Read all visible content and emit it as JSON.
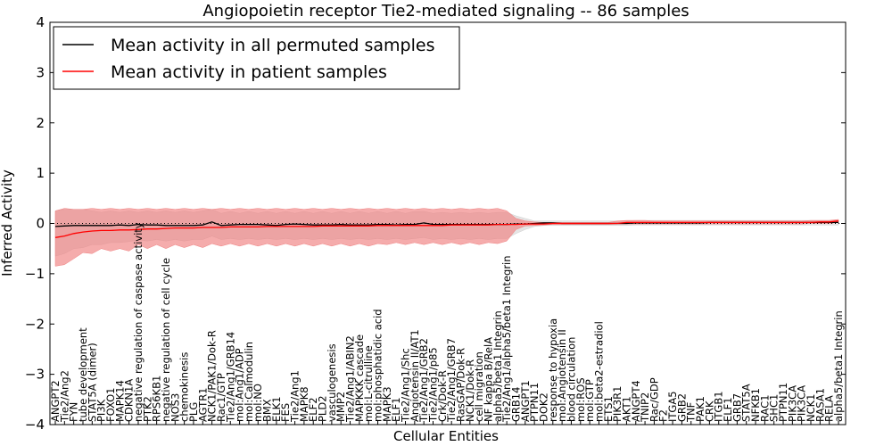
{
  "chart_data": {
    "type": "line",
    "title": "Angiopoietin receptor Tie2-mediated signaling -- 86 samples",
    "xlabel": "Cellular Entities",
    "ylabel": "Inferred Activity",
    "ylim": [
      -4,
      4
    ],
    "yticks": [
      "4",
      "3",
      "2",
      "1",
      "0",
      "−1",
      "−2",
      "−3",
      "−4"
    ],
    "legend_position": "top-left",
    "categories": [
      "ANGPT2",
      "Tie2/Ang2",
      "FYN",
      "tube development",
      "STAT5A (dimer)",
      "PI3K",
      "FOXO1",
      "MAPK14",
      "CDKN1A",
      "negative regulation of caspase activity",
      "PTK2",
      "RPS6KB1",
      "negative regulation of cell cycle",
      "NOS3",
      "chemokinesis",
      "PLG",
      "AGTR1",
      "NCK1/PAK1/Dok-R",
      "Rac1/GTP",
      "Tie2/Ang1/GRB14",
      "mol:Ang1/ADP",
      "mol:Calmodulin",
      "mol:NO",
      "BMX",
      "ELK1",
      "FES",
      "Tie2/Ang1",
      "MAPK8",
      "ELF2",
      "PLD2",
      "vasculogenesis",
      "MMP2",
      "Tie2/Ang1/ABIN2",
      "MAPKKK cascade",
      "mol:L-citrulline",
      "mol:phosphatidic acid",
      "MAPK3",
      "ELF1",
      "Tie2/Ang1/Shc",
      "Angiotensin II/AT1",
      "Tie2/Ang1/GRB2",
      "Tie2/Ang1/p85",
      "Crk/Dok-R",
      "Tie2/Ang1/GRB7",
      "RasGAP/Dok-R",
      "NCK1/Dok-R",
      "cell migration",
      "NF kappa B/RelA",
      "alpha5/beta1 Integrin",
      "Tie2/Ang1/alpha5/beta1 Integrin",
      "GRB14",
      "ANGPT1",
      "PTPN11",
      "DOK2",
      "response to hypoxia",
      "mol:Angiotensin II",
      "blood circulation",
      "mol:ROS",
      "mol:GTP",
      "mol:beta2-estradiol",
      "ETS1",
      "PIK3R1",
      "AKT1",
      "ANGPT4",
      "TNIP2",
      "Rac/GDP",
      "F2",
      "ITGA5",
      "GRB2",
      "TNF",
      "PAK1",
      "CRK",
      "ITGB1",
      "ELF1",
      "GRB7",
      "STAT5A",
      "NFKB1",
      "RAC1",
      "SHC1",
      "PTPN11",
      "PIK3CA",
      "PIK3CA",
      "NCK1",
      "RASA1",
      "RELA",
      "alpha5/beta1 Integrin"
    ],
    "series": [
      {
        "name": "Mean activity in all permuted samples",
        "color": "#000000",
        "values": [
          -0.06,
          -0.05,
          -0.04,
          -0.04,
          -0.04,
          -0.04,
          -0.04,
          -0.03,
          -0.04,
          -0.02,
          -0.03,
          -0.03,
          -0.04,
          -0.04,
          -0.04,
          -0.04,
          -0.03,
          0.03,
          -0.04,
          -0.03,
          -0.02,
          -0.02,
          -0.02,
          -0.03,
          -0.04,
          -0.02,
          -0.01,
          -0.02,
          -0.03,
          -0.03,
          -0.03,
          -0.02,
          -0.03,
          -0.03,
          -0.03,
          -0.02,
          -0.02,
          -0.03,
          -0.02,
          -0.02,
          0.01,
          -0.02,
          -0.02,
          -0.02,
          -0.02,
          -0.02,
          -0.02,
          -0.02,
          -0.02,
          -0.02,
          -0.01,
          -0.01,
          0.0,
          0.01,
          0.01,
          0.0,
          0.0,
          0.0,
          0.0,
          0.0,
          0.0,
          0.0,
          0.0,
          0.01,
          0.01,
          0.01,
          0.01,
          0.01,
          0.01,
          0.01,
          0.01,
          0.02,
          0.02,
          0.02,
          0.02,
          0.02,
          0.02,
          0.02,
          0.02,
          0.02,
          0.02,
          0.02,
          0.02,
          0.02,
          0.02,
          0.02
        ],
        "band_upper": [
          0.25,
          0.28,
          0.28,
          0.28,
          0.25,
          0.22,
          0.25,
          0.22,
          0.25,
          0.22,
          0.25,
          0.22,
          0.25,
          0.22,
          0.25,
          0.22,
          0.25,
          0.28,
          0.2,
          0.24,
          0.2,
          0.24,
          0.2,
          0.24,
          0.2,
          0.24,
          0.2,
          0.24,
          0.2,
          0.24,
          0.2,
          0.24,
          0.2,
          0.24,
          0.2,
          0.24,
          0.2,
          0.24,
          0.2,
          0.24,
          0.24,
          0.2,
          0.22,
          0.2,
          0.22,
          0.2,
          0.22,
          0.2,
          0.22,
          0.22,
          0.15,
          0.1,
          0.05,
          0.05,
          0.05,
          0.05,
          0.05,
          0.05,
          0.05,
          0.05,
          0.05,
          0.05,
          0.05,
          0.06,
          0.06,
          0.06,
          0.06,
          0.06,
          0.06,
          0.06,
          0.06,
          0.06,
          0.06,
          0.06,
          0.06,
          0.06,
          0.06,
          0.06,
          0.06,
          0.06,
          0.06,
          0.06,
          0.06,
          0.06,
          0.06,
          0.06
        ],
        "band_lower": [
          -0.65,
          -0.6,
          -0.5,
          -0.48,
          -0.42,
          -0.42,
          -0.38,
          -0.38,
          -0.36,
          -0.33,
          -0.35,
          -0.32,
          -0.35,
          -0.32,
          -0.35,
          -0.32,
          -0.32,
          -0.25,
          -0.32,
          -0.3,
          -0.32,
          -0.3,
          -0.32,
          -0.3,
          -0.32,
          -0.3,
          -0.32,
          -0.3,
          -0.32,
          -0.3,
          -0.32,
          -0.3,
          -0.32,
          -0.3,
          -0.32,
          -0.3,
          -0.32,
          -0.3,
          -0.32,
          -0.3,
          -0.28,
          -0.32,
          -0.3,
          -0.32,
          -0.3,
          -0.32,
          -0.3,
          -0.32,
          -0.3,
          -0.3,
          -0.2,
          -0.12,
          -0.06,
          -0.04,
          -0.04,
          -0.04,
          -0.04,
          -0.04,
          -0.04,
          -0.04,
          -0.04,
          -0.04,
          -0.04,
          -0.03,
          -0.03,
          -0.03,
          -0.03,
          -0.03,
          -0.03,
          -0.03,
          -0.03,
          -0.03,
          -0.03,
          -0.03,
          -0.03,
          -0.03,
          -0.03,
          -0.03,
          -0.03,
          -0.03,
          -0.03,
          -0.03,
          -0.03,
          -0.03,
          -0.03,
          -0.03
        ]
      },
      {
        "name": "Mean activity in patient samples",
        "color": "#ff0000",
        "values": [
          -0.28,
          -0.25,
          -0.2,
          -0.17,
          -0.15,
          -0.14,
          -0.14,
          -0.13,
          -0.13,
          -0.12,
          -0.11,
          -0.11,
          -0.1,
          -0.09,
          -0.09,
          -0.09,
          -0.08,
          -0.08,
          -0.08,
          -0.07,
          -0.07,
          -0.07,
          -0.07,
          -0.06,
          -0.06,
          -0.06,
          -0.06,
          -0.06,
          -0.06,
          -0.05,
          -0.05,
          -0.05,
          -0.05,
          -0.05,
          -0.05,
          -0.04,
          -0.04,
          -0.04,
          -0.04,
          -0.04,
          -0.04,
          -0.04,
          -0.04,
          -0.03,
          -0.03,
          -0.03,
          -0.03,
          -0.03,
          -0.02,
          -0.02,
          -0.02,
          -0.01,
          -0.01,
          -0.01,
          0.0,
          0.0,
          0.0,
          0.0,
          0.0,
          0.0,
          0.0,
          0.0,
          0.02,
          0.02,
          0.02,
          0.02,
          0.02,
          0.02,
          0.02,
          0.02,
          0.02,
          0.02,
          0.02,
          0.02,
          0.02,
          0.02,
          0.02,
          0.02,
          0.02,
          0.02,
          0.02,
          0.02,
          0.02,
          0.03,
          0.03,
          0.05
        ],
        "band_upper": [
          0.25,
          0.3,
          0.28,
          0.28,
          0.3,
          0.28,
          0.3,
          0.28,
          0.3,
          0.28,
          0.3,
          0.28,
          0.3,
          0.28,
          0.3,
          0.28,
          0.3,
          0.28,
          0.3,
          0.28,
          0.3,
          0.28,
          0.3,
          0.28,
          0.3,
          0.28,
          0.3,
          0.28,
          0.3,
          0.28,
          0.3,
          0.28,
          0.3,
          0.28,
          0.3,
          0.28,
          0.3,
          0.28,
          0.3,
          0.28,
          0.3,
          0.28,
          0.3,
          0.28,
          0.3,
          0.28,
          0.3,
          0.28,
          0.3,
          0.25,
          0.1,
          0.05,
          0.03,
          0.02,
          0.02,
          0.02,
          0.02,
          0.02,
          0.02,
          0.02,
          0.02,
          0.05,
          0.06,
          0.06,
          0.06,
          0.05,
          0.05,
          0.05,
          0.05,
          0.05,
          0.05,
          0.05,
          0.05,
          0.05,
          0.05,
          0.05,
          0.05,
          0.05,
          0.05,
          0.05,
          0.05,
          0.05,
          0.06,
          0.06,
          0.06,
          0.08
        ],
        "band_lower": [
          -0.85,
          -0.82,
          -0.7,
          -0.58,
          -0.6,
          -0.5,
          -0.55,
          -0.5,
          -0.55,
          -0.42,
          -0.5,
          -0.42,
          -0.5,
          -0.42,
          -0.48,
          -0.42,
          -0.48,
          -0.4,
          -0.45,
          -0.4,
          -0.45,
          -0.4,
          -0.45,
          -0.4,
          -0.45,
          -0.4,
          -0.45,
          -0.4,
          -0.45,
          -0.4,
          -0.45,
          -0.4,
          -0.45,
          -0.4,
          -0.45,
          -0.4,
          -0.42,
          -0.38,
          -0.42,
          -0.38,
          -0.42,
          -0.38,
          -0.42,
          -0.38,
          -0.42,
          -0.38,
          -0.42,
          -0.38,
          -0.4,
          -0.35,
          -0.12,
          -0.05,
          -0.04,
          -0.03,
          -0.02,
          -0.02,
          -0.02,
          -0.02,
          -0.02,
          -0.02,
          -0.02,
          -0.01,
          -0.01,
          -0.01,
          -0.01,
          -0.01,
          -0.01,
          -0.01,
          -0.01,
          -0.01,
          -0.01,
          -0.01,
          -0.01,
          -0.01,
          -0.01,
          -0.01,
          -0.01,
          -0.01,
          -0.01,
          -0.01,
          -0.01,
          -0.01,
          0.0,
          0.0,
          0.0,
          0.02
        ]
      }
    ]
  }
}
